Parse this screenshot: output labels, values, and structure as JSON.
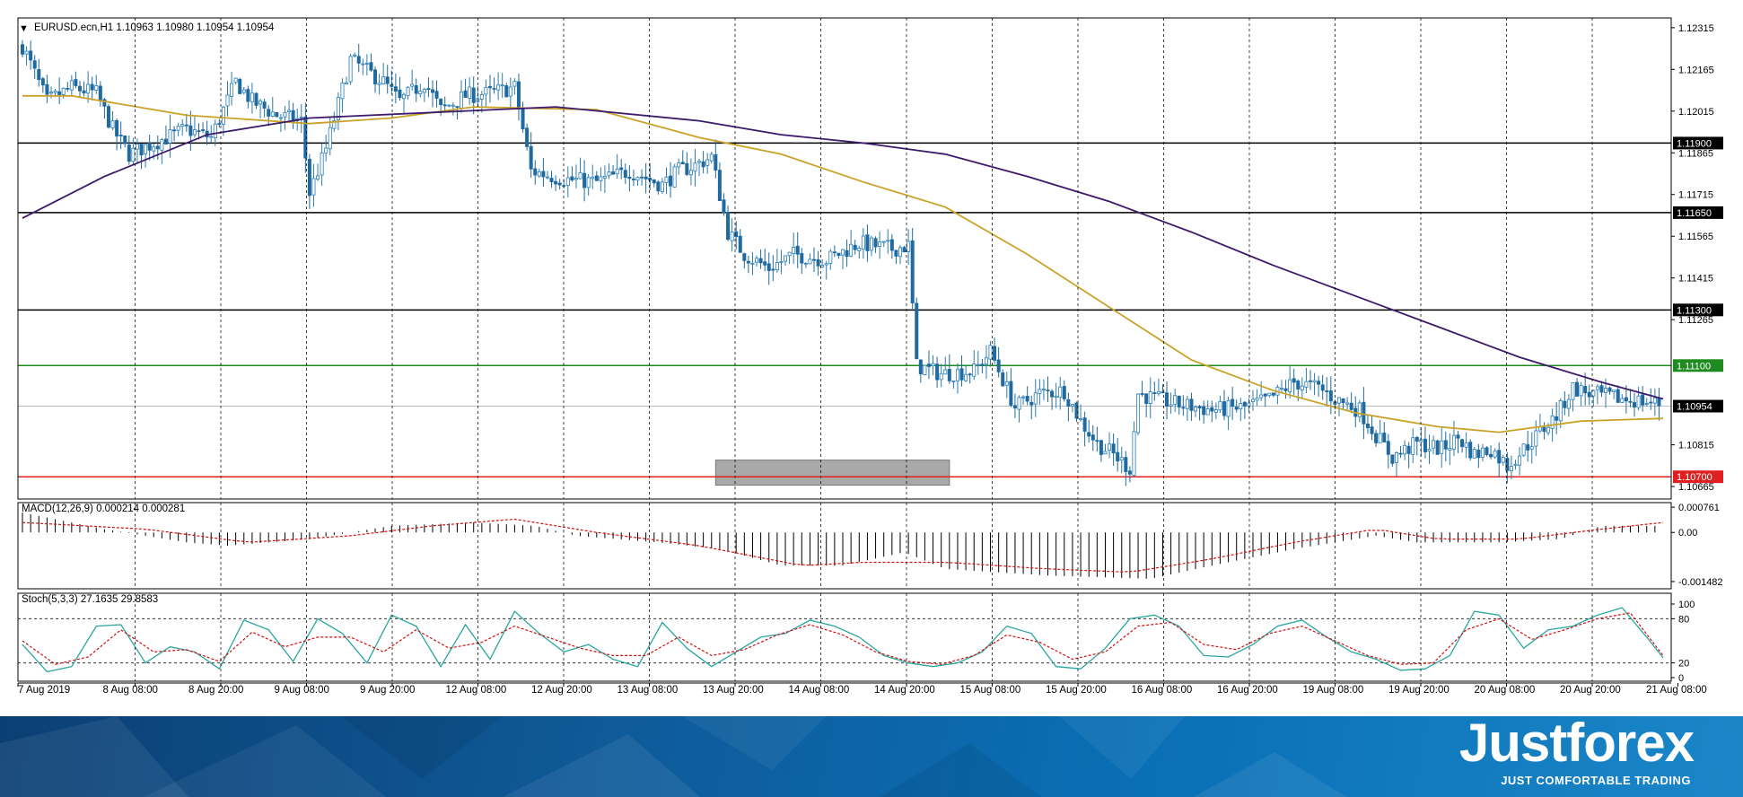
{
  "colors": {
    "bull": "#2a7db3",
    "bear": "#1f6aa0",
    "ma_fast": "#c9a227",
    "ma_slow": "#3d1a6b",
    "level_line": "#000000",
    "resistance": "#1f8a1f",
    "support": "#e02020",
    "zone": "#9a9a9a",
    "macd_hist": "#000000",
    "macd_signal": "#d01010",
    "stoch_main": "#2aa6a0",
    "stoch_signal": "#d01010",
    "banner": "#0f5a99"
  },
  "chart_data": [
    {
      "type": "candlestick",
      "title": "EURUSD.ecn,H1  1.10963 1.10980 1.10954 1.10954",
      "symbol": "EURUSD.ecn",
      "timeframe": "H1",
      "ohlc_readout": [
        1.10963,
        1.1098,
        1.10954,
        1.10954
      ],
      "ylim": [
        1.1062,
        1.1235
      ],
      "y_ticks": [
        "1.12315",
        "1.12165",
        "1.12015",
        "1.11865",
        "1.11715",
        "1.11565",
        "1.11415",
        "1.11265",
        "1.10815",
        "1.10665"
      ],
      "x_tick_labels": [
        "7 Aug 2019",
        "8 Aug 08:00",
        "8 Aug 20:00",
        "9 Aug 08:00",
        "9 Aug 20:00",
        "12 Aug 08:00",
        "12 Aug 20:00",
        "13 Aug 08:00",
        "13 Aug 20:00",
        "14 Aug 08:00",
        "14 Aug 20:00",
        "15 Aug 08:00",
        "15 Aug 20:00",
        "16 Aug 08:00",
        "16 Aug 20:00",
        "19 Aug 08:00",
        "19 Aug 20:00",
        "20 Aug 08:00",
        "20 Aug 20:00",
        "21 Aug 08:00"
      ],
      "price_levels": [
        {
          "value": 1.119,
          "label": "1.11900",
          "style": "black"
        },
        {
          "value": 1.1165,
          "label": "1.11650",
          "style": "black"
        },
        {
          "value": 1.113,
          "label": "1.11300",
          "style": "black"
        },
        {
          "value": 1.111,
          "label": "1.11100",
          "style": "green"
        },
        {
          "value": 1.10954,
          "label": "1.10954",
          "style": "current"
        },
        {
          "value": 1.107,
          "label": "1.10700",
          "style": "red"
        }
      ],
      "support_zone": {
        "from_index": 169,
        "to_index": 226,
        "low": 1.1067,
        "high": 1.1076
      },
      "price_path": [
        [
          0,
          1.1225
        ],
        [
          6,
          1.1205
        ],
        [
          12,
          1.121
        ],
        [
          18,
          1.1208
        ],
        [
          22,
          1.1195
        ],
        [
          26,
          1.1186
        ],
        [
          32,
          1.119
        ],
        [
          40,
          1.1195
        ],
        [
          46,
          1.1192
        ],
        [
          52,
          1.1212
        ],
        [
          56,
          1.1205
        ],
        [
          62,
          1.12
        ],
        [
          68,
          1.1198
        ],
        [
          70,
          1.1172
        ],
        [
          74,
          1.1188
        ],
        [
          80,
          1.122
        ],
        [
          88,
          1.1212
        ],
        [
          92,
          1.1205
        ],
        [
          98,
          1.1212
        ],
        [
          102,
          1.1202
        ],
        [
          108,
          1.1207
        ],
        [
          114,
          1.1208
        ],
        [
          120,
          1.121
        ],
        [
          124,
          1.118
        ],
        [
          132,
          1.1177
        ],
        [
          140,
          1.1176
        ],
        [
          148,
          1.118
        ],
        [
          156,
          1.1175
        ],
        [
          160,
          1.118
        ],
        [
          164,
          1.1182
        ],
        [
          168,
          1.1185
        ],
        [
          172,
          1.1158
        ],
        [
          176,
          1.115
        ],
        [
          182,
          1.1145
        ],
        [
          188,
          1.115
        ],
        [
          196,
          1.1148
        ],
        [
          204,
          1.1154
        ],
        [
          212,
          1.1152
        ],
        [
          216,
          1.1153
        ],
        [
          218,
          1.111
        ],
        [
          224,
          1.1107
        ],
        [
          232,
          1.1108
        ],
        [
          236,
          1.1115
        ],
        [
          242,
          1.1095
        ],
        [
          248,
          1.11
        ],
        [
          254,
          1.1101
        ],
        [
          258,
          1.109
        ],
        [
          262,
          1.1082
        ],
        [
          266,
          1.1078
        ],
        [
          270,
          1.1073
        ],
        [
          272,
          1.11
        ],
        [
          276,
          1.1098
        ],
        [
          282,
          1.1096
        ],
        [
          290,
          1.1094
        ],
        [
          298,
          1.1095
        ],
        [
          304,
          1.1098
        ],
        [
          310,
          1.1104
        ],
        [
          316,
          1.1102
        ],
        [
          320,
          1.1098
        ],
        [
          326,
          1.1094
        ],
        [
          330,
          1.1085
        ],
        [
          334,
          1.1077
        ],
        [
          340,
          1.1082
        ],
        [
          346,
          1.108
        ],
        [
          350,
          1.1084
        ],
        [
          354,
          1.1078
        ],
        [
          358,
          1.108
        ],
        [
          362,
          1.1074
        ],
        [
          366,
          1.108
        ],
        [
          370,
          1.1086
        ],
        [
          374,
          1.1092
        ],
        [
          378,
          1.1102
        ],
        [
          382,
          1.11
        ],
        [
          390,
          1.1098
        ],
        [
          396,
          1.1097
        ],
        [
          400,
          1.1096
        ]
      ],
      "ma_fast": {
        "type": "line",
        "points": [
          [
            0,
            1.1207
          ],
          [
            12,
            1.1207
          ],
          [
            40,
            1.12
          ],
          [
            70,
            1.1197
          ],
          [
            90,
            1.1199
          ],
          [
            110,
            1.1203
          ],
          [
            140,
            1.1202
          ],
          [
            165,
            1.1192
          ],
          [
            185,
            1.1186
          ],
          [
            205,
            1.1176
          ],
          [
            225,
            1.1167
          ],
          [
            245,
            1.115
          ],
          [
            265,
            1.1131
          ],
          [
            285,
            1.1112
          ],
          [
            305,
            1.1101
          ],
          [
            325,
            1.1093
          ],
          [
            345,
            1.1088
          ],
          [
            360,
            1.1086
          ],
          [
            380,
            1.109
          ],
          [
            400,
            1.1091
          ]
        ]
      },
      "ma_slow": {
        "type": "line",
        "points": [
          [
            0,
            1.1163
          ],
          [
            20,
            1.1178
          ],
          [
            45,
            1.1193
          ],
          [
            70,
            1.1199
          ],
          [
            100,
            1.1201
          ],
          [
            130,
            1.1203
          ],
          [
            165,
            1.1198
          ],
          [
            185,
            1.1193
          ],
          [
            205,
            1.119
          ],
          [
            225,
            1.1186
          ],
          [
            245,
            1.1178
          ],
          [
            265,
            1.1169
          ],
          [
            285,
            1.1158
          ],
          [
            305,
            1.1146
          ],
          [
            325,
            1.1135
          ],
          [
            345,
            1.1124
          ],
          [
            365,
            1.1113
          ],
          [
            385,
            1.1104
          ],
          [
            400,
            1.1098
          ]
        ]
      }
    },
    {
      "type": "bar",
      "title": "MACD(12,26,9) 0.000214 0.000281",
      "ylim": [
        -0.0017,
        0.0009
      ],
      "y_ticks": [
        "0.000761",
        "0.00",
        "-0.001482"
      ],
      "hist_path": [
        [
          0,
          0.0006
        ],
        [
          20,
          0.0001
        ],
        [
          40,
          -0.0003
        ],
        [
          50,
          -0.0004
        ],
        [
          70,
          -0.0002
        ],
        [
          90,
          0.0002
        ],
        [
          110,
          0.0003
        ],
        [
          125,
          0.0002
        ],
        [
          135,
          -0.0001
        ],
        [
          155,
          -0.0003
        ],
        [
          170,
          -0.0005
        ],
        [
          185,
          -0.001
        ],
        [
          200,
          -0.001
        ],
        [
          215,
          -0.0006
        ],
        [
          225,
          -0.0011
        ],
        [
          250,
          -0.0013
        ],
        [
          275,
          -0.0014
        ],
        [
          290,
          -0.001
        ],
        [
          310,
          -0.0005
        ],
        [
          330,
          -0.0001
        ],
        [
          340,
          -0.0003
        ],
        [
          360,
          -0.0003
        ],
        [
          375,
          -0.0002
        ],
        [
          385,
          0.0002
        ],
        [
          400,
          0.0002
        ]
      ],
      "signal_path": [
        [
          0,
          0.0003
        ],
        [
          30,
          0.0001
        ],
        [
          55,
          -0.0003
        ],
        [
          80,
          -0.0001
        ],
        [
          100,
          0.0002
        ],
        [
          120,
          0.0004
        ],
        [
          140,
          0.0
        ],
        [
          165,
          -0.0004
        ],
        [
          190,
          -0.001
        ],
        [
          205,
          -0.0009
        ],
        [
          225,
          -0.0009
        ],
        [
          250,
          -0.0011
        ],
        [
          270,
          -0.0012
        ],
        [
          290,
          -0.0008
        ],
        [
          310,
          -0.0003
        ],
        [
          330,
          0.0001
        ],
        [
          345,
          -0.0002
        ],
        [
          365,
          -0.0002
        ],
        [
          385,
          0.0001
        ],
        [
          400,
          0.0003
        ]
      ]
    },
    {
      "type": "line",
      "title": "Stoch(5,3,3) 27.1635 29.8583",
      "ylim": [
        0,
        100
      ],
      "y_ticks": [
        "100",
        "80",
        "20",
        "0"
      ],
      "k_path": [
        [
          0,
          45
        ],
        [
          6,
          8
        ],
        [
          12,
          15
        ],
        [
          18,
          70
        ],
        [
          24,
          72
        ],
        [
          30,
          20
        ],
        [
          36,
          42
        ],
        [
          42,
          35
        ],
        [
          48,
          12
        ],
        [
          54,
          78
        ],
        [
          60,
          65
        ],
        [
          66,
          22
        ],
        [
          72,
          80
        ],
        [
          78,
          60
        ],
        [
          84,
          20
        ],
        [
          90,
          85
        ],
        [
          96,
          70
        ],
        [
          102,
          15
        ],
        [
          108,
          72
        ],
        [
          114,
          25
        ],
        [
          120,
          90
        ],
        [
          126,
          60
        ],
        [
          132,
          35
        ],
        [
          138,
          45
        ],
        [
          144,
          25
        ],
        [
          150,
          15
        ],
        [
          156,
          75
        ],
        [
          162,
          40
        ],
        [
          168,
          15
        ],
        [
          174,
          35
        ],
        [
          180,
          55
        ],
        [
          186,
          60
        ],
        [
          192,
          78
        ],
        [
          198,
          70
        ],
        [
          204,
          55
        ],
        [
          210,
          30
        ],
        [
          216,
          20
        ],
        [
          222,
          15
        ],
        [
          228,
          20
        ],
        [
          234,
          35
        ],
        [
          240,
          70
        ],
        [
          246,
          60
        ],
        [
          252,
          15
        ],
        [
          258,
          12
        ],
        [
          264,
          40
        ],
        [
          270,
          80
        ],
        [
          276,
          85
        ],
        [
          282,
          70
        ],
        [
          288,
          30
        ],
        [
          294,
          28
        ],
        [
          300,
          45
        ],
        [
          306,
          70
        ],
        [
          312,
          78
        ],
        [
          318,
          55
        ],
        [
          324,
          35
        ],
        [
          330,
          25
        ],
        [
          336,
          10
        ],
        [
          342,
          12
        ],
        [
          348,
          30
        ],
        [
          354,
          90
        ],
        [
          360,
          85
        ],
        [
          366,
          40
        ],
        [
          372,
          65
        ],
        [
          378,
          70
        ],
        [
          384,
          85
        ],
        [
          390,
          95
        ],
        [
          396,
          55
        ],
        [
          400,
          27
        ]
      ],
      "d_path": [
        [
          0,
          50
        ],
        [
          8,
          18
        ],
        [
          16,
          28
        ],
        [
          24,
          65
        ],
        [
          32,
          35
        ],
        [
          40,
          38
        ],
        [
          48,
          22
        ],
        [
          56,
          62
        ],
        [
          64,
          42
        ],
        [
          72,
          55
        ],
        [
          80,
          55
        ],
        [
          88,
          35
        ],
        [
          96,
          65
        ],
        [
          104,
          40
        ],
        [
          112,
          48
        ],
        [
          120,
          70
        ],
        [
          128,
          55
        ],
        [
          136,
          40
        ],
        [
          144,
          30
        ],
        [
          152,
          30
        ],
        [
          160,
          55
        ],
        [
          168,
          30
        ],
        [
          176,
          38
        ],
        [
          184,
          58
        ],
        [
          192,
          72
        ],
        [
          200,
          58
        ],
        [
          208,
          35
        ],
        [
          216,
          22
        ],
        [
          224,
          18
        ],
        [
          232,
          30
        ],
        [
          240,
          58
        ],
        [
          248,
          48
        ],
        [
          256,
          25
        ],
        [
          264,
          35
        ],
        [
          272,
          70
        ],
        [
          280,
          75
        ],
        [
          288,
          45
        ],
        [
          296,
          38
        ],
        [
          304,
          60
        ],
        [
          312,
          70
        ],
        [
          320,
          50
        ],
        [
          328,
          30
        ],
        [
          336,
          18
        ],
        [
          344,
          20
        ],
        [
          352,
          65
        ],
        [
          360,
          80
        ],
        [
          368,
          52
        ],
        [
          376,
          65
        ],
        [
          384,
          80
        ],
        [
          392,
          88
        ],
        [
          400,
          30
        ]
      ]
    }
  ],
  "banner": {
    "logo": "Justforex",
    "tagline": "JUST COMFORTABLE TRADING"
  }
}
